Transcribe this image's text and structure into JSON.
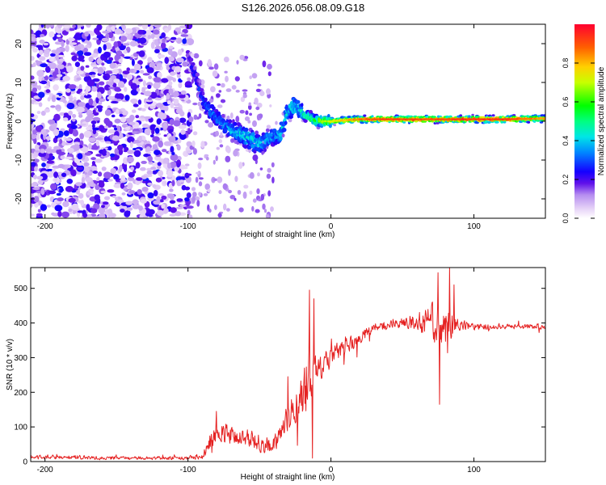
{
  "figure_title": "S126.2026.056.08.09.G18",
  "chart_data": [
    {
      "type": "heatmap",
      "title": "S126.2026.056.08.09.G18",
      "xlabel": "Height of straight line (km)",
      "ylabel": "Frequency (Hz)",
      "xlim": [
        -210,
        150
      ],
      "ylim": [
        -25,
        25
      ],
      "xticks": [
        -200,
        -100,
        0,
        100
      ],
      "yticks": [
        -20,
        -10,
        0,
        10,
        20
      ],
      "colorbar": {
        "label": "Normalized spectral amplitude",
        "range": [
          0,
          1
        ],
        "ticks": [
          "0.0",
          "0.2",
          "0.4",
          "0.6",
          "0.8"
        ],
        "colors": [
          "#ffffff",
          "#dcc4f4",
          "#9960e8",
          "#4400e6",
          "#0000ff",
          "#00b4ff",
          "#00ff9a",
          "#00ff00",
          "#ffff00",
          "#ff8000",
          "#ff0000"
        ]
      },
      "ridge": {
        "description": "frequency of the dominant spectral peak vs height",
        "x": [
          -100,
          -95,
          -90,
          -85,
          -80,
          -75,
          -70,
          -65,
          -60,
          -55,
          -50,
          -45,
          -40,
          -35,
          -30,
          -25,
          -20,
          -15,
          -10,
          -5,
          0,
          20,
          40,
          60,
          80,
          100,
          120,
          150
        ],
        "freq": [
          17,
          12,
          6,
          3,
          1,
          -1,
          -2,
          -3,
          -4,
          -5,
          -6,
          -5,
          -4,
          -3,
          3,
          4,
          2,
          1,
          0,
          0,
          0,
          0.5,
          0.5,
          0.5,
          0.5,
          0.5,
          0.5,
          0.7
        ],
        "amplitude": [
          0.2,
          0.25,
          0.3,
          0.35,
          0.35,
          0.35,
          0.4,
          0.45,
          0.5,
          0.55,
          0.5,
          0.45,
          0.4,
          0.45,
          0.55,
          0.5,
          0.5,
          0.55,
          0.6,
          0.65,
          0.7,
          0.85,
          0.9,
          0.9,
          0.9,
          0.92,
          0.92,
          0.8
        ]
      }
    },
    {
      "type": "line",
      "xlabel": "Height of straight line (km)",
      "ylabel": "SNR (10 * v/v)",
      "xlim": [
        -210,
        150
      ],
      "ylim": [
        0,
        560
      ],
      "xticks": [
        -200,
        -100,
        0,
        100
      ],
      "yticks": [
        0,
        100,
        200,
        300,
        400,
        500
      ],
      "series": [
        {
          "name": "SNR",
          "color": "#e52222",
          "x": [
            -210,
            -150,
            -100,
            -90,
            -85,
            -80,
            -75,
            -70,
            -65,
            -60,
            -55,
            -50,
            -45,
            -40,
            -35,
            -30,
            -25,
            -20,
            -15,
            -10,
            -5,
            0,
            5,
            10,
            20,
            30,
            40,
            50,
            60,
            70,
            80,
            90,
            100,
            120,
            150
          ],
          "y": [
            15,
            10,
            10,
            15,
            55,
            80,
            80,
            75,
            70,
            70,
            65,
            50,
            40,
            50,
            80,
            130,
            160,
            200,
            230,
            260,
            290,
            300,
            320,
            330,
            360,
            380,
            395,
            400,
            405,
            400,
            395,
            395,
            390,
            390,
            390
          ],
          "noise_amplitude": [
            8,
            7,
            7,
            12,
            30,
            45,
            45,
            40,
            35,
            35,
            30,
            28,
            25,
            30,
            40,
            60,
            80,
            90,
            80,
            60,
            45,
            40,
            35,
            30,
            25,
            20,
            18,
            18,
            35,
            70,
            80,
            20,
            12,
            10,
            10
          ]
        }
      ]
    }
  ]
}
